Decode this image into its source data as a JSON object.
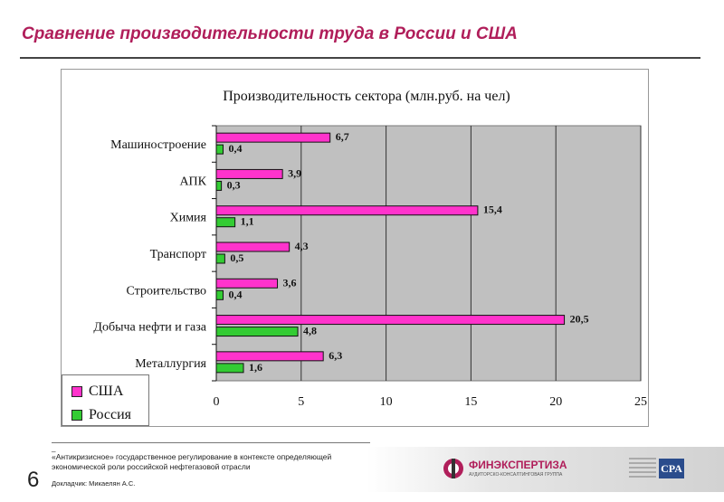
{
  "slide": {
    "title": "Сравнение производительности труда в России и США",
    "page_number": "6"
  },
  "footer": {
    "dash": "_",
    "text": "«Антикризисное» государственное регулирование в контексте определяющей экономической роли российской нефтегазовой отрасли",
    "author": "Докладчик: Микаелян А.С."
  },
  "logo": {
    "name": "ФИНЭКСПЕРТИЗА",
    "sub": "АУДИТОРСКО-КОНСАЛТИНГОВАЯ ГРУППА",
    "cpa": "CPA"
  },
  "chart_data": {
    "type": "bar",
    "orientation": "horizontal",
    "title": "Производительность сектора (млн.руб. на чел)",
    "categories": [
      "Машиностроение",
      "АПК",
      "Химия",
      "Транспорт",
      "Строительство",
      "Добыча нефти и газа",
      "Металлургия"
    ],
    "series": [
      {
        "name": "США",
        "color": "#ff33cc",
        "values": [
          6.7,
          3.9,
          15.4,
          4.3,
          3.6,
          20.5,
          6.3
        ],
        "labels": [
          "6,7",
          "3,9",
          "15,4",
          "4,3",
          "3,6",
          "20,5",
          "6,3"
        ]
      },
      {
        "name": "Россия",
        "color": "#33cc33",
        "values": [
          0.4,
          0.3,
          1.1,
          0.5,
          0.4,
          4.8,
          1.6
        ],
        "labels": [
          "0,4",
          "0,3",
          "1,1",
          "0,5",
          "0,4",
          "4,8",
          "1,6"
        ]
      }
    ],
    "xlim": [
      0,
      25
    ],
    "xticks": [
      0,
      5,
      10,
      15,
      20,
      25
    ],
    "xtick_labels": [
      "0",
      "5",
      "10",
      "15",
      "20",
      "25"
    ],
    "plot_background": "#c0c0c0",
    "grid": true,
    "legend_position": "bottom-left"
  }
}
